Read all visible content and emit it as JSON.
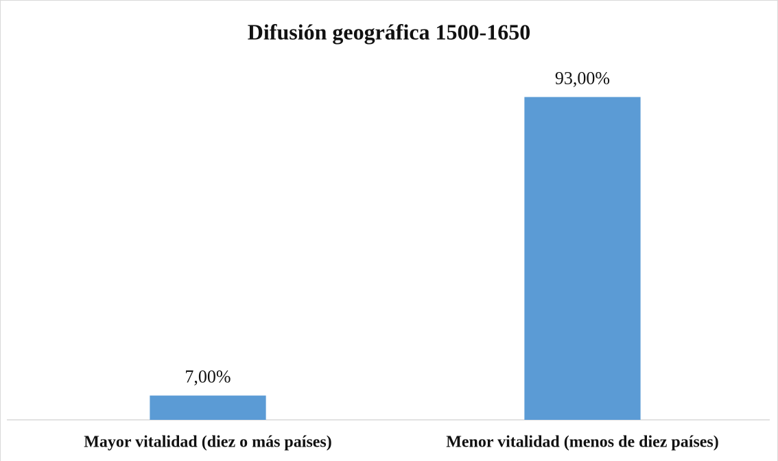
{
  "chart_data": {
    "type": "bar",
    "title": "Difusión geográfica 1500-1650",
    "categories": [
      "Mayor vitalidad (diez o más países)",
      "Menor vitalidad (menos de diez países)"
    ],
    "values": [
      7,
      93
    ],
    "value_labels": [
      "7,00%",
      "93,00%"
    ],
    "color": "#5b9bd5",
    "ylim": [
      0,
      100
    ]
  }
}
